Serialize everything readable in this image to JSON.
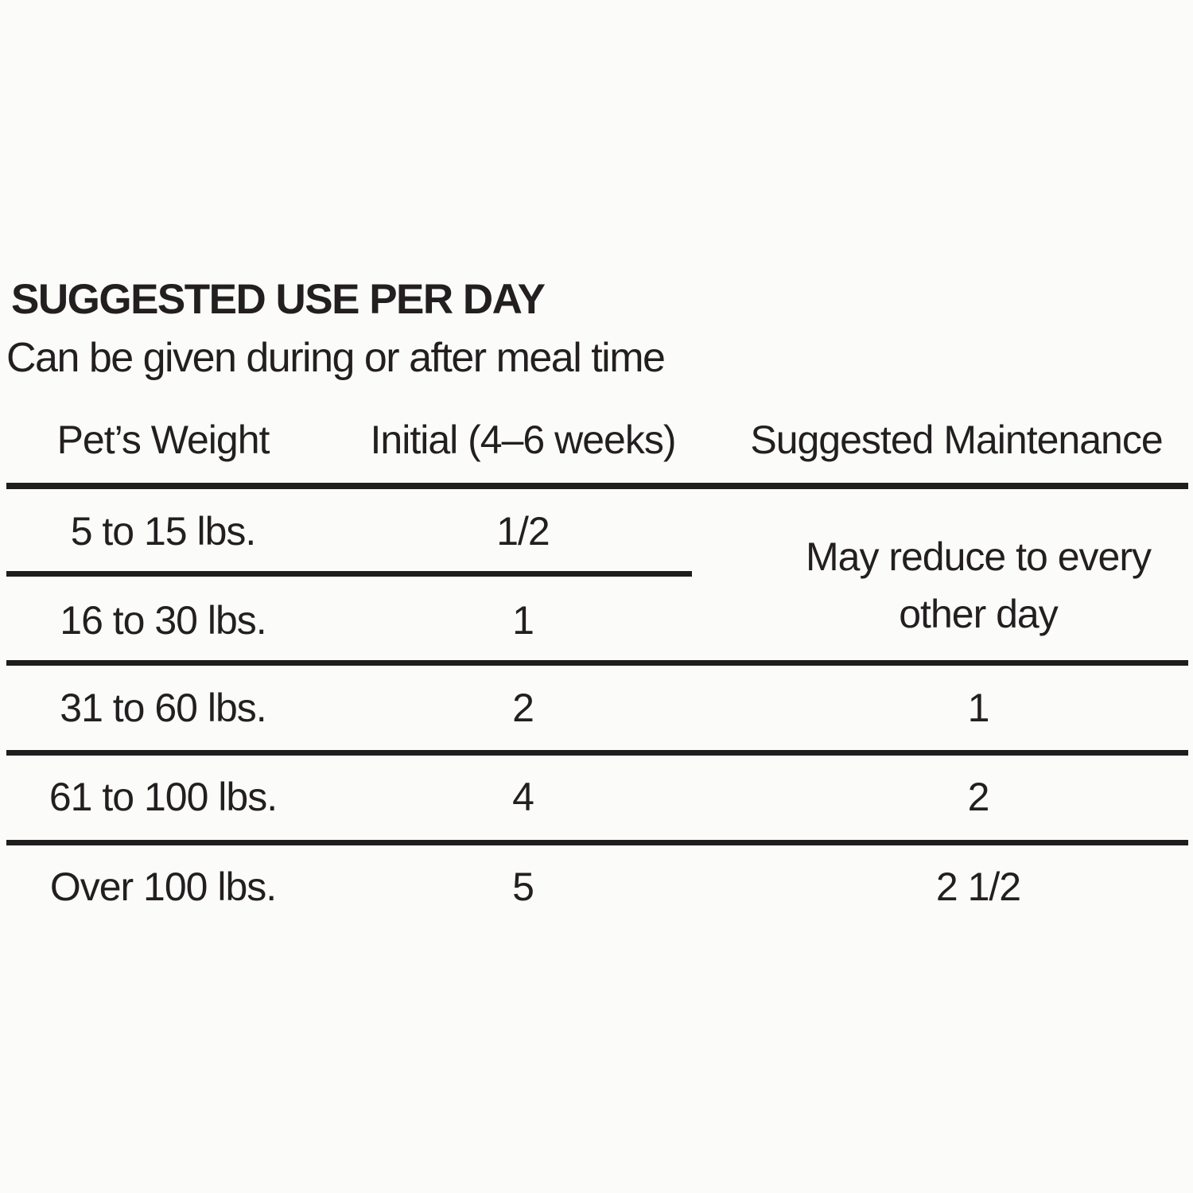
{
  "title": "SUGGESTED USE PER DAY",
  "subtitle": "Can be given during or after meal time",
  "table": {
    "columns": [
      "Pet’s Weight",
      "Initial (4–6 weeks)",
      "Suggested Maintenance"
    ],
    "rows": [
      {
        "weight": "5 to 15 lbs.",
        "initial": "1/2",
        "maintenance": ""
      },
      {
        "weight": "16 to 30 lbs.",
        "initial": "1",
        "maintenance": ""
      },
      {
        "weight": "31 to 60 lbs.",
        "initial": "2",
        "maintenance": "1"
      },
      {
        "weight": "61 to 100 lbs.",
        "initial": "4",
        "maintenance": "2"
      },
      {
        "weight": "Over 100 lbs.",
        "initial": "5",
        "maintenance": "2 1/2"
      }
    ],
    "merged_maintenance_note": "May reduce to every other day",
    "merged_maintenance_note_lines": [
      "May reduce to every",
      "other day"
    ]
  },
  "colors": {
    "text": "#231f20",
    "rule": "#1f1d1d",
    "background": "#fbfbfa"
  }
}
